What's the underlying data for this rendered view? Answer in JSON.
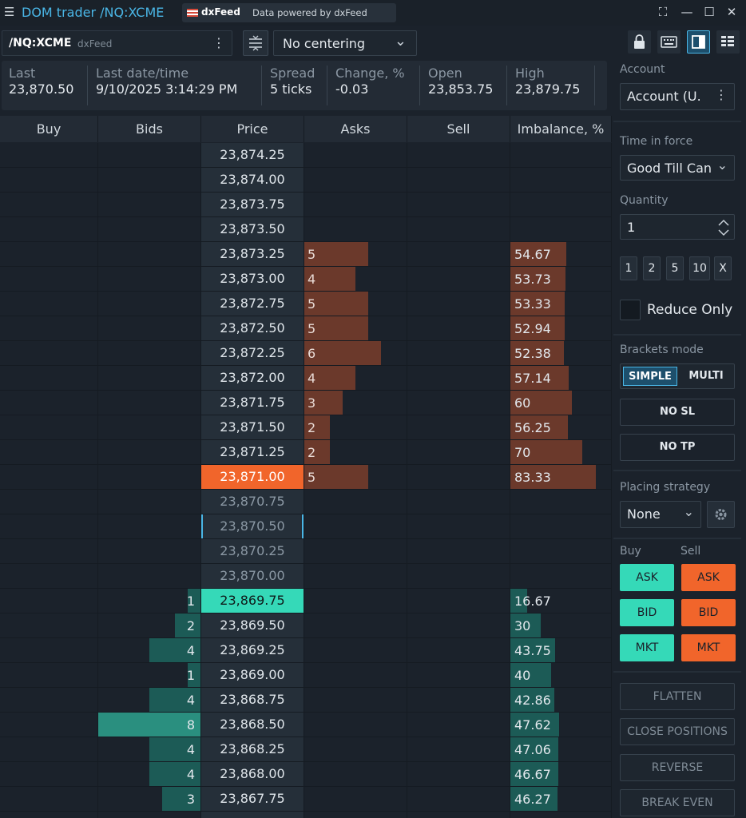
{
  "window": {
    "title": "DOM trader /NQ:XCME",
    "badge_brand": "dxFeed",
    "badge_text": "Data powered by dxFeed",
    "controls": [
      "fullscreen",
      "minimize",
      "maximize",
      "close"
    ]
  },
  "toolbar": {
    "symbol": "/NQ:XCME",
    "feed": "dxFeed",
    "centering": "No centering"
  },
  "stats": [
    {
      "label": "Last",
      "value": "23,870.50"
    },
    {
      "label": "Last date/time",
      "value": "9/10/2025 3:14:29 PM"
    },
    {
      "label": "Spread",
      "value": "5 ticks"
    },
    {
      "label": "Change, %",
      "value": "-0.03"
    },
    {
      "label": "Open",
      "value": "23,853.75"
    },
    {
      "label": "High",
      "value": "23,879.75"
    }
  ],
  "columns": [
    "Buy",
    "Bids",
    "Price",
    "Asks",
    "Sell",
    "Imbalance, %"
  ],
  "colors": {
    "ask_bar": "#6b392b",
    "bid_bar": "#1c5b56",
    "buy": "#35d9b8",
    "sell": "#f1652b",
    "accent": "#4ab6e6"
  },
  "ladder": [
    {
      "price": "23,874.25",
      "ask": "",
      "bid": "",
      "imbalance": ""
    },
    {
      "price": "23,874.00",
      "ask": "",
      "bid": "",
      "imbalance": ""
    },
    {
      "price": "23,873.75",
      "ask": "",
      "bid": "",
      "imbalance": ""
    },
    {
      "price": "23,873.50",
      "ask": "",
      "bid": "",
      "imbalance": ""
    },
    {
      "price": "23,873.25",
      "ask": "5",
      "bid": "",
      "imbalance": "54.67"
    },
    {
      "price": "23,873.00",
      "ask": "4",
      "bid": "",
      "imbalance": "53.73"
    },
    {
      "price": "23,872.75",
      "ask": "5",
      "bid": "",
      "imbalance": "53.33"
    },
    {
      "price": "23,872.50",
      "ask": "5",
      "bid": "",
      "imbalance": "52.94"
    },
    {
      "price": "23,872.25",
      "ask": "6",
      "bid": "",
      "imbalance": "52.38"
    },
    {
      "price": "23,872.00",
      "ask": "4",
      "bid": "",
      "imbalance": "57.14"
    },
    {
      "price": "23,871.75",
      "ask": "3",
      "bid": "",
      "imbalance": "60"
    },
    {
      "price": "23,871.50",
      "ask": "2",
      "bid": "",
      "imbalance": "56.25"
    },
    {
      "price": "23,871.25",
      "ask": "2",
      "bid": "",
      "imbalance": "70"
    },
    {
      "price": "23,871.00",
      "ask": "5",
      "bid": "",
      "imbalance": "83.33",
      "highlight": "last"
    },
    {
      "price": "23,870.75",
      "ask": "",
      "bid": "",
      "imbalance": "",
      "dim": true
    },
    {
      "price": "23,870.50",
      "ask": "",
      "bid": "",
      "imbalance": "",
      "dim": true,
      "bracket": true
    },
    {
      "price": "23,870.25",
      "ask": "",
      "bid": "",
      "imbalance": "",
      "dim": true
    },
    {
      "price": "23,870.00",
      "ask": "",
      "bid": "",
      "imbalance": "",
      "dim": true
    },
    {
      "price": "23,869.75",
      "ask": "",
      "bid": "1",
      "imbalance": "16.67",
      "highlight": "bid"
    },
    {
      "price": "23,869.50",
      "ask": "",
      "bid": "2",
      "imbalance": "30"
    },
    {
      "price": "23,869.25",
      "ask": "",
      "bid": "4",
      "imbalance": "43.75"
    },
    {
      "price": "23,869.00",
      "ask": "",
      "bid": "1",
      "imbalance": "40"
    },
    {
      "price": "23,868.75",
      "ask": "",
      "bid": "4",
      "imbalance": "42.86"
    },
    {
      "price": "23,868.50",
      "ask": "",
      "bid": "8",
      "imbalance": "47.62"
    },
    {
      "price": "23,868.25",
      "ask": "",
      "bid": "4",
      "imbalance": "47.06"
    },
    {
      "price": "23,868.00",
      "ask": "",
      "bid": "4",
      "imbalance": "46.67"
    },
    {
      "price": "23,867.75",
      "ask": "",
      "bid": "3",
      "imbalance": "46.27"
    },
    {
      "price": "",
      "ask": "",
      "bid": "",
      "imbalance": ""
    }
  ],
  "panel": {
    "account_label": "Account",
    "account_value": "Account (U.",
    "tif_label": "Time in force",
    "tif_value": "Good Till Can",
    "quantity_label": "Quantity",
    "quantity_value": "1",
    "quick_qty": [
      "1",
      "2",
      "5",
      "10",
      "X"
    ],
    "reduce_only": "Reduce Only",
    "brackets_label": "Brackets mode",
    "bracket_simple": "SIMPLE",
    "bracket_multi": "MULTI",
    "no_sl": "NO SL",
    "no_tp": "NO TP",
    "strategy_label": "Placing strategy",
    "strategy_value": "None",
    "buy_label": "Buy",
    "sell_label": "Sell",
    "ask": "ASK",
    "bid": "BID",
    "mkt": "MKT",
    "flatten": "FLATTEN",
    "close_positions": "CLOSE POSITIONS",
    "reverse": "REVERSE",
    "break_even": "BREAK EVEN"
  }
}
